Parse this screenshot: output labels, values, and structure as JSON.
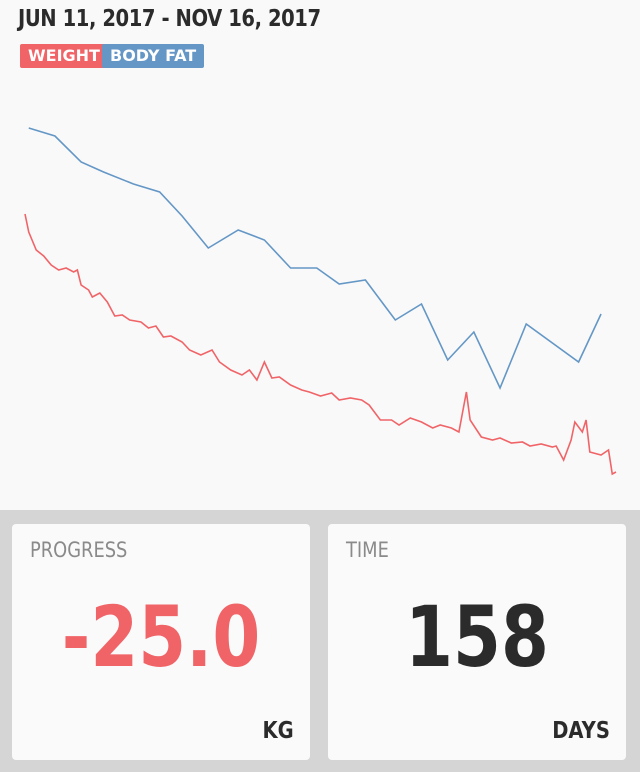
{
  "chart_data": {
    "type": "line",
    "title": "JUN 11, 2017 - NOV 16, 2017",
    "xlim": [
      0,
      158
    ],
    "ylim": [
      0,
      100
    ],
    "series": [
      {
        "name": "WEIGHT",
        "color": "#f06468",
        "x": [
          0,
          1,
          3,
          5,
          7,
          9,
          11,
          13,
          14,
          15,
          17,
          18,
          20,
          22,
          24,
          26,
          28,
          31,
          33,
          35,
          37,
          39,
          42,
          44,
          47,
          50,
          52,
          55,
          58,
          60,
          62,
          64,
          66,
          68,
          71,
          74,
          76,
          79,
          82,
          84,
          87,
          90,
          92,
          95,
          98,
          100,
          103,
          106,
          109,
          111,
          114,
          116,
          118,
          119,
          122,
          125,
          127,
          130,
          133,
          135,
          138,
          141,
          142,
          144,
          146,
          147,
          149,
          150,
          151,
          154,
          156,
          157,
          158
        ],
        "values": [
          71.5,
          67,
          62.5,
          61,
          58.75,
          57.5,
          58,
          57,
          57.5,
          53.75,
          52.5,
          50.75,
          51.75,
          49.5,
          46,
          46.25,
          45,
          44.5,
          43,
          43.5,
          40.75,
          41,
          39.5,
          37.5,
          36.25,
          37.5,
          34.5,
          32.5,
          31.25,
          32.5,
          30,
          34.5,
          30.5,
          30.75,
          28.75,
          27.5,
          27,
          26,
          26.75,
          25,
          25.5,
          25,
          23.75,
          20,
          20,
          18.75,
          20.5,
          19.5,
          18,
          18.75,
          18,
          17,
          27,
          20,
          15.75,
          15,
          15.5,
          14.25,
          14.5,
          13.5,
          14,
          13.25,
          13.5,
          10,
          15,
          19.5,
          17,
          20,
          12,
          11.25,
          12.5,
          6.5,
          7
        ]
      },
      {
        "name": "BODY FAT",
        "color": "#6497c6",
        "x": [
          1,
          8,
          15,
          21,
          29,
          36,
          42,
          49,
          57,
          64,
          71,
          78,
          84,
          91,
          99,
          106,
          113,
          120,
          127,
          134,
          148,
          154
        ],
        "values": [
          93,
          91,
          84.5,
          82,
          79,
          77,
          71,
          63,
          67.5,
          65,
          58,
          58,
          54,
          55,
          45,
          49,
          35,
          42,
          28,
          44,
          34.5,
          46.5
        ]
      }
    ]
  },
  "cards": [
    {
      "label": "PROGRESS",
      "value": "-25.0",
      "unit": "KG",
      "color": "#f06468"
    },
    {
      "label": "TIME",
      "value": 158,
      "unit": "DAYS",
      "color": "#2b2b2b"
    }
  ]
}
